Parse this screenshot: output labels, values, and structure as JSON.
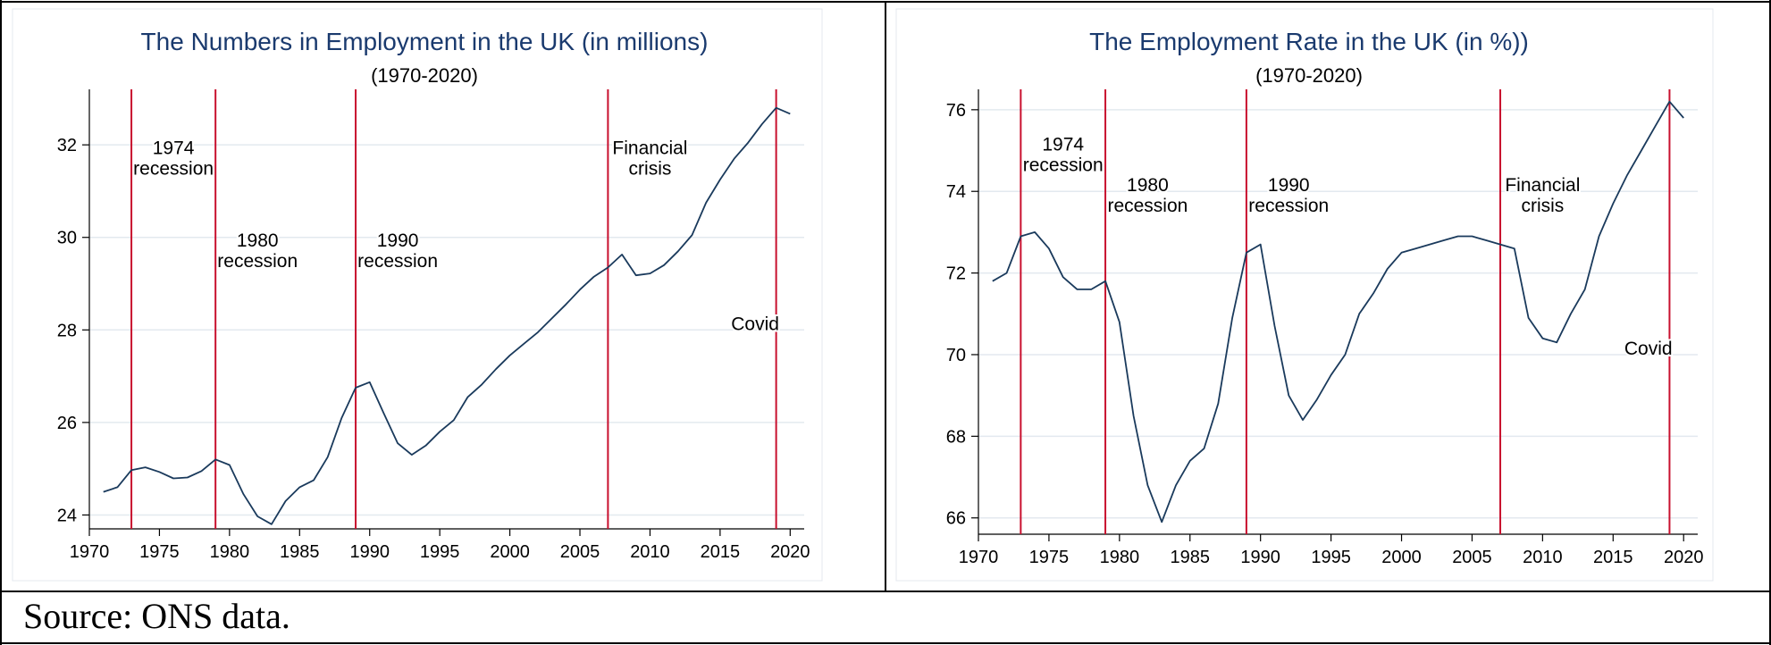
{
  "source_note": "Source: ONS data.",
  "chart_data": [
    {
      "type": "line",
      "title": "The Numbers in Employment in the UK (in millions)",
      "subtitle": "(1970-2020)",
      "xlabel": "",
      "ylabel": "",
      "xlim": [
        1970,
        2021
      ],
      "ylim": [
        23.7,
        33.2
      ],
      "x_ticks": [
        1970,
        1975,
        1980,
        1985,
        1990,
        1995,
        2000,
        2005,
        2010,
        2015,
        2020
      ],
      "y_ticks": [
        24,
        26,
        28,
        30,
        32
      ],
      "grid": true,
      "line_color": "#1a3a5c",
      "event_color": "#c8102e",
      "series": [
        {
          "x": [
            1971,
            1972,
            1973,
            1974,
            1975,
            1976,
            1977,
            1978,
            1979,
            1980,
            1981,
            1982,
            1983,
            1984,
            1985,
            1986,
            1987,
            1988,
            1989,
            1990,
            1991,
            1992,
            1993,
            1994,
            1995,
            1996,
            1997,
            1998,
            1999,
            2000,
            2001,
            2002,
            2003,
            2004,
            2005,
            2006,
            2007,
            2008,
            2009,
            2010,
            2011,
            2012,
            2013,
            2014,
            2015,
            2016,
            2017,
            2018,
            2019,
            2020
          ],
          "values": [
            24.5,
            24.6,
            24.97,
            25.03,
            24.93,
            24.79,
            24.81,
            24.95,
            25.2,
            25.08,
            24.45,
            23.97,
            23.8,
            24.3,
            24.6,
            24.75,
            25.25,
            26.1,
            26.75,
            26.87,
            26.2,
            25.55,
            25.3,
            25.5,
            25.8,
            26.05,
            26.55,
            26.82,
            27.15,
            27.45,
            27.7,
            27.95,
            28.25,
            28.55,
            28.87,
            29.15,
            29.35,
            29.63,
            29.18,
            29.22,
            29.4,
            29.7,
            30.05,
            30.75,
            31.25,
            31.7,
            32.05,
            32.45,
            32.8,
            32.67
          ]
        }
      ],
      "events": [
        {
          "year": 1973,
          "label_lines": [
            "1974",
            "recession"
          ],
          "label_x": 1976,
          "label_y": 31.8
        },
        {
          "year": 1979,
          "label_lines": [
            "1980",
            "recession"
          ],
          "label_x": 1982,
          "label_y": 29.8
        },
        {
          "year": 1989,
          "label_lines": [
            "1990",
            "recession"
          ],
          "label_x": 1992,
          "label_y": 29.8
        },
        {
          "year": 2007,
          "label_lines": [
            "Financial",
            "crisis"
          ],
          "label_x": 2010,
          "label_y": 31.8
        },
        {
          "year": 2019,
          "label_lines": [
            "Covid"
          ],
          "label_x": 2017.5,
          "label_y": 28.0
        }
      ]
    },
    {
      "type": "line",
      "title": "The Employment Rate in the UK (in %))",
      "subtitle": "(1970-2020)",
      "xlabel": "",
      "ylabel": "",
      "xlim": [
        1970,
        2021
      ],
      "ylim": [
        65.6,
        76.5
      ],
      "x_ticks": [
        1970,
        1975,
        1980,
        1985,
        1990,
        1995,
        2000,
        2005,
        2010,
        2015,
        2020
      ],
      "y_ticks": [
        66,
        68,
        70,
        72,
        74,
        76
      ],
      "grid": true,
      "line_color": "#1a3a5c",
      "event_color": "#c8102e",
      "series": [
        {
          "x": [
            1971,
            1972,
            1973,
            1974,
            1975,
            1976,
            1977,
            1978,
            1979,
            1980,
            1981,
            1982,
            1983,
            1984,
            1985,
            1986,
            1987,
            1988,
            1989,
            1990,
            1991,
            1992,
            1993,
            1994,
            1995,
            1996,
            1997,
            1998,
            1999,
            2000,
            2001,
            2002,
            2003,
            2004,
            2005,
            2006,
            2007,
            2008,
            2009,
            2010,
            2011,
            2012,
            2013,
            2014,
            2015,
            2016,
            2017,
            2018,
            2019,
            2020
          ],
          "values": [
            71.8,
            72.0,
            72.9,
            73.0,
            72.6,
            71.9,
            71.6,
            71.6,
            71.8,
            70.8,
            68.5,
            66.8,
            65.9,
            66.8,
            67.4,
            67.7,
            68.8,
            70.9,
            72.5,
            72.7,
            70.7,
            69.0,
            68.4,
            68.9,
            69.5,
            70.0,
            71.0,
            71.5,
            72.1,
            72.5,
            72.6,
            72.7,
            72.8,
            72.9,
            72.9,
            72.8,
            72.7,
            72.6,
            70.9,
            70.4,
            70.3,
            71.0,
            71.6,
            72.9,
            73.7,
            74.4,
            75.0,
            75.6,
            76.2,
            75.8
          ]
        }
      ],
      "events": [
        {
          "year": 1973,
          "label_lines": [
            "1974",
            "recession"
          ],
          "label_x": 1976,
          "label_y": 75.0
        },
        {
          "year": 1979,
          "label_lines": [
            "1980",
            "recession"
          ],
          "label_x": 1982,
          "label_y": 74.0
        },
        {
          "year": 1989,
          "label_lines": [
            "1990",
            "recession"
          ],
          "label_x": 1992,
          "label_y": 74.0
        },
        {
          "year": 2007,
          "label_lines": [
            "Financial",
            "crisis"
          ],
          "label_x": 2010,
          "label_y": 74.0
        },
        {
          "year": 2019,
          "label_lines": [
            "Covid"
          ],
          "label_x": 2017.5,
          "label_y": 70.0
        }
      ]
    }
  ]
}
